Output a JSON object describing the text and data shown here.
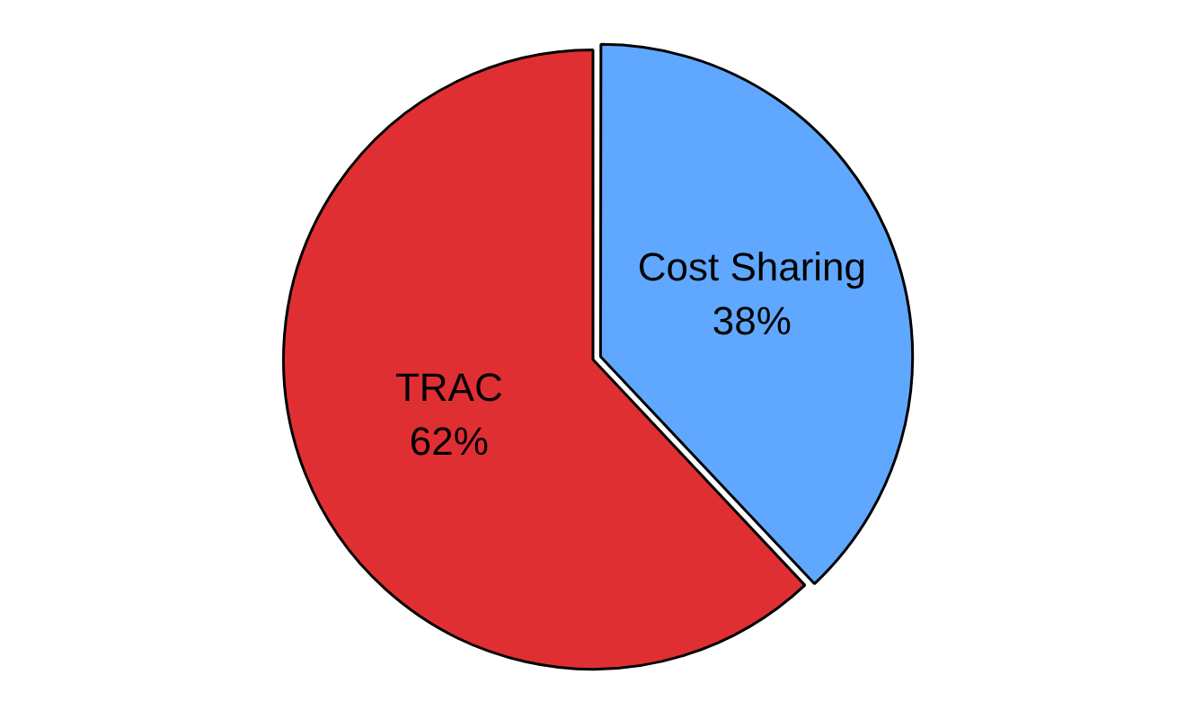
{
  "chart_data": {
    "type": "pie",
    "categories": [
      "Cost Sharing",
      "TRAC"
    ],
    "values": [
      38,
      62
    ],
    "colors": [
      "#60a8ff",
      "#e02f33"
    ],
    "value_labels": [
      "38%",
      "62%"
    ],
    "legend": false
  }
}
